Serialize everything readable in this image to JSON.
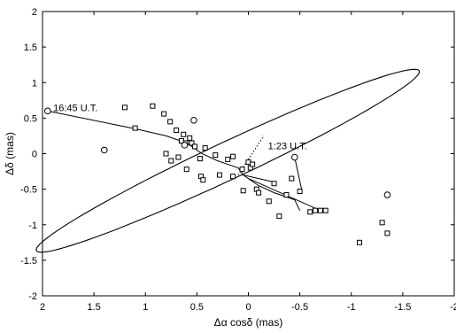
{
  "chart_data": {
    "type": "scatter",
    "xlabel": "Δα cosδ (mas)",
    "ylabel": "Δδ (mas)",
    "xlim": [
      2,
      -2
    ],
    "ylim": [
      -2,
      2
    ],
    "x_ticks": [
      2,
      1.5,
      1,
      0.5,
      0,
      -0.5,
      -1,
      -1.5,
      -2
    ],
    "x_tick_labels": [
      "2",
      "1.5",
      "1",
      "0.5",
      "0",
      "-0.5",
      "-1",
      "-1.5",
      "-2"
    ],
    "y_ticks": [
      2,
      1.5,
      1,
      0.5,
      0,
      -0.5,
      -1,
      -1.5,
      -2
    ],
    "y_tick_labels": [
      "2",
      "1.5",
      "1",
      "0.5",
      "0",
      "-0.5",
      "-1",
      "-1.5",
      "-2"
    ],
    "grid": false,
    "annotations": [
      {
        "text": "16:45 U.T.",
        "x": 1.68,
        "y": 0.6
      },
      {
        "text": "1:23 U.T.",
        "x": -0.38,
        "y": 0.06
      }
    ],
    "ellipse": {
      "center": [
        0.2,
        -0.1
      ],
      "semi_major": 2.25,
      "semi_minor": 0.24,
      "angle_deg": -34.4
    },
    "track": {
      "x": [
        1.95,
        1.1,
        0.8,
        0.6,
        0.45,
        0.3,
        0.1,
        0.05,
        -0.1,
        -0.25,
        -0.45,
        -0.5
      ],
      "y": [
        0.6,
        0.35,
        0.25,
        0.15,
        0.0,
        -0.1,
        -0.2,
        -0.3,
        -0.45,
        -0.55,
        -0.65,
        -0.8
      ]
    },
    "connectors": [
      {
        "x": [
          -0.45,
          -0.52
        ],
        "y": [
          -0.05,
          -0.52
        ]
      },
      {
        "x": [
          0.05,
          -0.25
        ],
        "y": [
          -0.3,
          -0.4
        ]
      },
      {
        "x": [
          0.0,
          -0.7
        ],
        "y": [
          -0.35,
          -0.8
        ]
      }
    ],
    "dotted_segment": {
      "x": [
        0.1,
        -0.15
      ],
      "y": [
        -0.3,
        0.25
      ]
    },
    "series": [
      {
        "marker": "square",
        "x": [
          1.2,
          1.1,
          0.93,
          0.82,
          0.76,
          0.7,
          0.65,
          0.63,
          0.61,
          0.57,
          0.55,
          0.52,
          0.8,
          0.75,
          0.68,
          0.6,
          0.47,
          0.46,
          0.44,
          0.42,
          0.32,
          0.28,
          0.2,
          0.15,
          0.06,
          0.0,
          -0.02,
          -0.04,
          -0.08,
          0.15,
          0.05,
          -0.1,
          -0.2,
          -0.25,
          -0.3,
          -0.37,
          -0.42,
          -0.5,
          -0.6,
          -0.65,
          -0.7,
          -0.75,
          -1.08,
          -1.3,
          -1.35
        ],
        "y": [
          0.65,
          0.36,
          0.67,
          0.56,
          0.45,
          0.33,
          0.18,
          0.27,
          0.15,
          0.22,
          0.15,
          0.1,
          0.0,
          -0.1,
          -0.05,
          -0.22,
          -0.07,
          -0.32,
          -0.37,
          0.08,
          -0.02,
          -0.3,
          -0.08,
          -0.04,
          -0.22,
          -0.12,
          -0.2,
          -0.15,
          -0.5,
          -0.32,
          -0.52,
          -0.55,
          -0.67,
          -0.42,
          -0.88,
          -0.58,
          -0.35,
          -0.53,
          -0.82,
          -0.8,
          -0.8,
          -0.8,
          -1.25,
          -0.97,
          -1.12
        ]
      },
      {
        "marker": "circle",
        "x": [
          1.95,
          1.4,
          0.62,
          0.53,
          -0.45,
          -1.35
        ],
        "y": [
          0.6,
          0.05,
          0.12,
          0.47,
          -0.05,
          -0.58
        ]
      }
    ]
  }
}
